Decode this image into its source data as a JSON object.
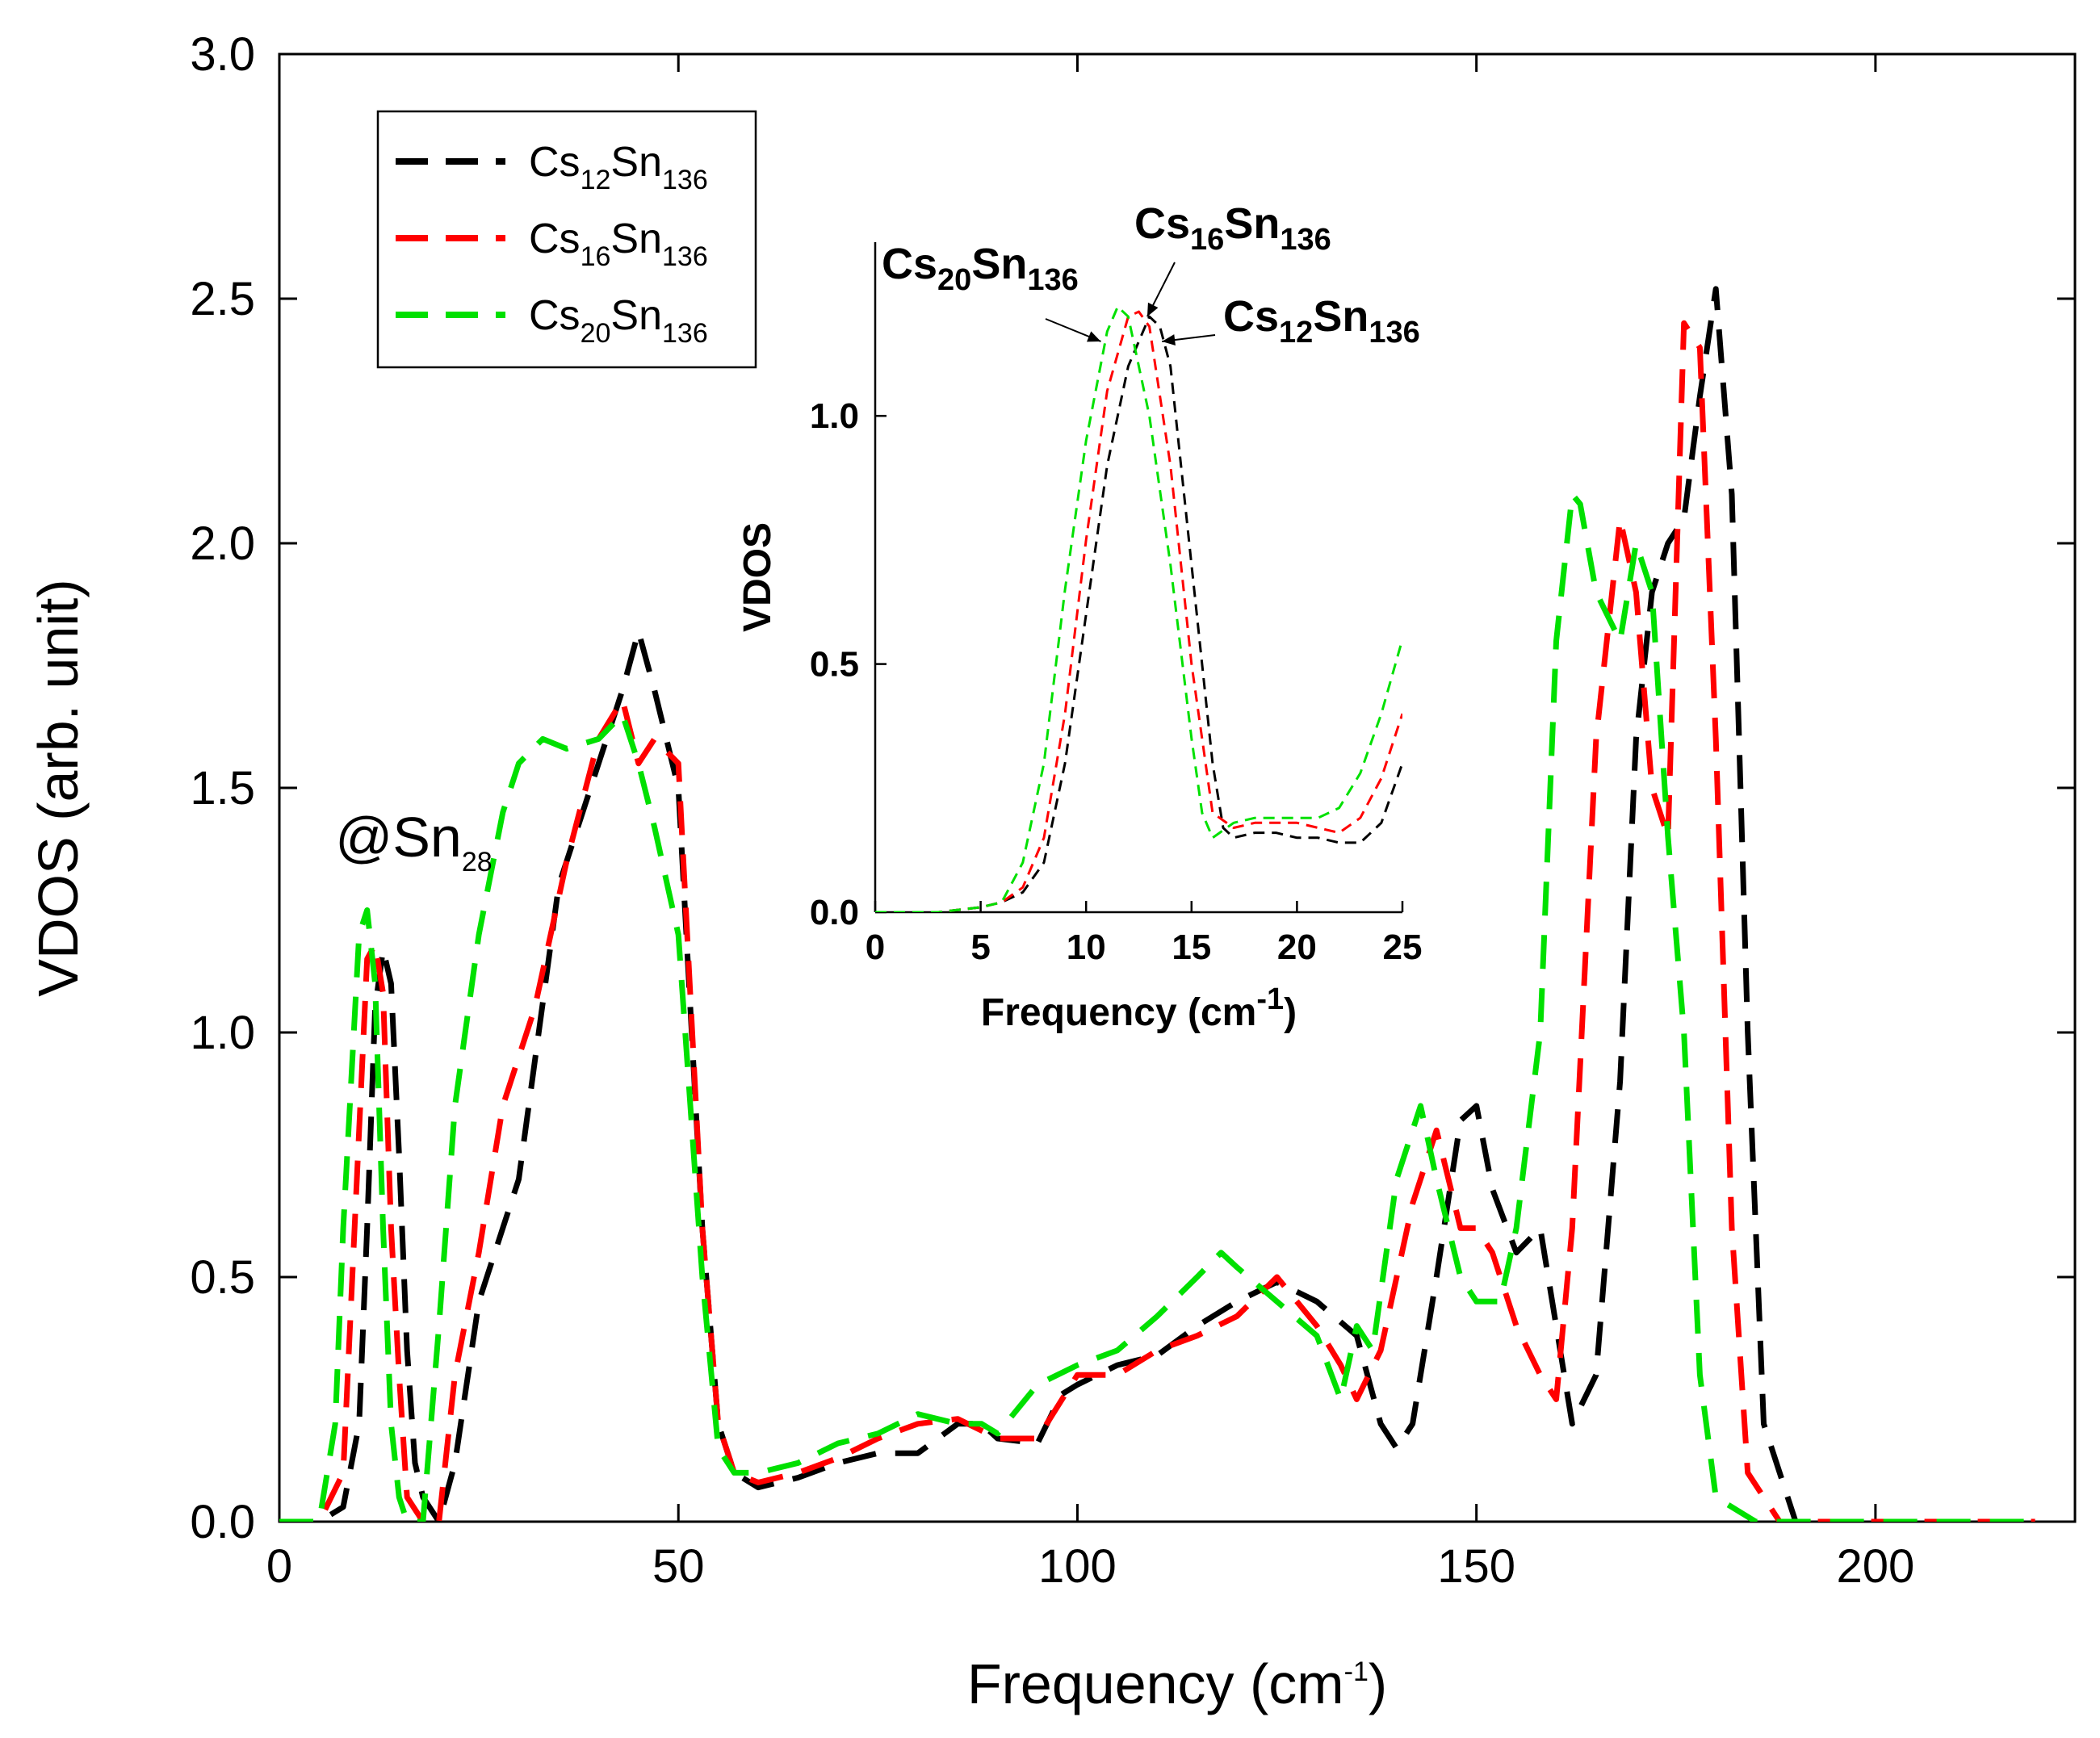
{
  "colors": {
    "black": "#000000",
    "red": "#ff0000",
    "green": "#00e000"
  },
  "chart_data": [
    {
      "type": "line",
      "name": "main",
      "xlabel": {
        "base": "Frequency (cm",
        "sup": "-1",
        "tail": ")"
      },
      "ylabel": "VDOS (arb. unit)",
      "xlim": [
        0,
        225
      ],
      "ylim": [
        0,
        3.0
      ],
      "xticks": [
        "0",
        "50",
        "100",
        "150",
        "200"
      ],
      "xtick_values": [
        0,
        50,
        100,
        150,
        200
      ],
      "yticks": [
        "0.0",
        "0.5",
        "1.0",
        "1.5",
        "2.0",
        "2.5",
        "3.0"
      ],
      "ytick_values": [
        0,
        0.5,
        1.0,
        1.5,
        2.0,
        2.5,
        3.0
      ],
      "annotation": {
        "text": "@Sn",
        "sub": "28",
        "x": 7,
        "y": 1.36
      },
      "legend_position": "top-left",
      "series": [
        {
          "name": "Cs12Sn136",
          "base": "Cs",
          "sub1": "12",
          "mid": "Sn",
          "sub2": "136",
          "color": "#000000",
          "x": [
            0,
            5,
            8,
            10,
            11,
            12,
            13,
            14,
            15,
            16,
            17,
            18,
            20,
            22,
            25,
            30,
            35,
            40,
            43,
            45,
            47,
            50,
            53,
            55,
            57,
            60,
            65,
            70,
            75,
            80,
            85,
            88,
            90,
            95,
            98,
            100,
            105,
            110,
            115,
            120,
            125,
            130,
            135,
            138,
            140,
            142,
            145,
            148,
            150,
            152,
            155,
            158,
            160,
            162,
            165,
            168,
            170,
            172,
            174,
            176,
            178,
            180,
            182,
            184,
            186,
            190,
            200,
            220
          ],
          "y": [
            0,
            0,
            0.03,
            0.2,
            0.6,
            1.05,
            1.17,
            1.1,
            0.75,
            0.35,
            0.12,
            0.05,
            0,
            0.12,
            0.45,
            0.7,
            1.3,
            1.55,
            1.7,
            1.82,
            1.7,
            1.5,
            0.6,
            0.2,
            0.1,
            0.07,
            0.09,
            0.12,
            0.14,
            0.14,
            0.2,
            0.2,
            0.17,
            0.16,
            0.26,
            0.28,
            0.32,
            0.34,
            0.4,
            0.45,
            0.49,
            0.45,
            0.38,
            0.2,
            0.15,
            0.2,
            0.5,
            0.82,
            0.85,
            0.68,
            0.55,
            0.6,
            0.4,
            0.2,
            0.3,
            0.9,
            1.6,
            1.9,
            2.0,
            2.05,
            2.3,
            2.52,
            2.1,
            1.0,
            0.2,
            0,
            0,
            0
          ]
        },
        {
          "name": "Cs16Sn136",
          "base": "Cs",
          "sub1": "16",
          "mid": "Sn",
          "sub2": "136",
          "color": "#ff0000",
          "x": [
            0,
            5,
            8,
            10,
            11,
            12,
            13,
            14,
            15,
            16,
            18,
            20,
            22,
            25,
            28,
            32,
            36,
            40,
            43,
            45,
            47,
            50,
            53,
            55,
            57,
            60,
            65,
            70,
            75,
            80,
            85,
            90,
            95,
            100,
            105,
            110,
            115,
            120,
            125,
            130,
            133,
            135,
            138,
            142,
            145,
            148,
            150,
            152,
            155,
            158,
            160,
            162,
            165,
            168,
            170,
            172,
            174,
            176,
            178,
            180,
            182,
            184,
            188,
            200,
            220
          ],
          "y": [
            0,
            0,
            0.1,
            0.8,
            1.15,
            1.18,
            1.08,
            0.6,
            0.3,
            0.05,
            0,
            0,
            0.3,
            0.55,
            0.85,
            1.05,
            1.35,
            1.6,
            1.68,
            1.55,
            1.6,
            1.55,
            0.6,
            0.2,
            0.1,
            0.08,
            0.1,
            0.13,
            0.17,
            0.2,
            0.21,
            0.17,
            0.17,
            0.3,
            0.3,
            0.35,
            0.38,
            0.42,
            0.5,
            0.4,
            0.32,
            0.25,
            0.35,
            0.65,
            0.8,
            0.6,
            0.6,
            0.55,
            0.4,
            0.3,
            0.25,
            0.6,
            1.6,
            2.05,
            1.9,
            1.5,
            1.4,
            2.45,
            2.4,
            1.6,
            0.6,
            0.1,
            0,
            0,
            0
          ]
        },
        {
          "name": "Cs20Sn136",
          "base": "Cs",
          "sub1": "20",
          "mid": "Sn",
          "sub2": "136",
          "color": "#00e000",
          "x": [
            0,
            5,
            7,
            8,
            10,
            11,
            12,
            13,
            14,
            15,
            16,
            18,
            20,
            22,
            25,
            28,
            30,
            33,
            36,
            40,
            43,
            45,
            47,
            50,
            53,
            55,
            57,
            60,
            65,
            70,
            75,
            80,
            85,
            88,
            90,
            95,
            100,
            105,
            110,
            115,
            118,
            120,
            125,
            130,
            133,
            135,
            137,
            140,
            143,
            145,
            148,
            150,
            153,
            155,
            158,
            160,
            162,
            163,
            165,
            168,
            170,
            172,
            174,
            176,
            178,
            180,
            185,
            190,
            200,
            220
          ],
          "y": [
            0,
            0,
            0.2,
            0.6,
            1.2,
            1.25,
            1.1,
            0.6,
            0.2,
            0.05,
            0,
            0,
            0.4,
            0.85,
            1.2,
            1.45,
            1.55,
            1.6,
            1.58,
            1.6,
            1.65,
            1.55,
            1.42,
            1.2,
            0.5,
            0.15,
            0.1,
            0.1,
            0.12,
            0.16,
            0.18,
            0.22,
            0.2,
            0.2,
            0.18,
            0.28,
            0.32,
            0.35,
            0.42,
            0.5,
            0.55,
            0.52,
            0.45,
            0.38,
            0.25,
            0.4,
            0.35,
            0.7,
            0.85,
            0.7,
            0.5,
            0.45,
            0.45,
            0.6,
            1.0,
            1.8,
            2.1,
            2.08,
            1.9,
            1.8,
            2.0,
            1.9,
            1.4,
            1.0,
            0.3,
            0.05,
            0,
            0,
            0,
            0
          ]
        }
      ]
    },
    {
      "type": "line",
      "name": "inset",
      "xlabel": {
        "base": "Frequency (cm",
        "sup": "-1",
        "tail": ")"
      },
      "ylabel": "VDOS",
      "xlim": [
        0,
        25
      ],
      "ylim": [
        0,
        1.35
      ],
      "xticks": [
        "0",
        "5",
        "10",
        "15",
        "20",
        "25"
      ],
      "xtick_values": [
        0,
        5,
        10,
        15,
        20,
        25
      ],
      "yticks": [
        "0.0",
        "0.5",
        "1.0"
      ],
      "ytick_values": [
        0,
        0.5,
        1.0
      ],
      "annotations": [
        {
          "base": "Cs",
          "sub1": "20",
          "mid": "Sn",
          "sub2": "136",
          "target": [
            10.7,
            1.15
          ]
        },
        {
          "base": "Cs",
          "sub1": "16",
          "mid": "Sn",
          "sub2": "136",
          "target": [
            12.9,
            1.2
          ]
        },
        {
          "base": "Cs",
          "sub1": "12",
          "mid": "Sn",
          "sub2": "136",
          "target": [
            13.6,
            1.15
          ]
        }
      ],
      "series": [
        {
          "name": "Cs12Sn136",
          "color": "#000000",
          "x": [
            0,
            3,
            5,
            6,
            7,
            8,
            9,
            10,
            11,
            12,
            13,
            13.5,
            14,
            15,
            16,
            16.5,
            17,
            18,
            19,
            20,
            21,
            22,
            23,
            24,
            25
          ],
          "y": [
            0,
            0,
            0.01,
            0.02,
            0.04,
            0.1,
            0.3,
            0.6,
            0.9,
            1.1,
            1.2,
            1.18,
            1.1,
            0.7,
            0.3,
            0.17,
            0.15,
            0.16,
            0.16,
            0.15,
            0.15,
            0.14,
            0.14,
            0.18,
            0.3
          ]
        },
        {
          "name": "Cs16Sn136",
          "color": "#ff0000",
          "x": [
            0,
            3,
            5,
            6,
            7,
            8,
            9,
            10,
            11,
            12,
            12.5,
            13,
            14,
            15,
            16,
            17,
            18,
            19,
            20,
            21,
            22,
            23,
            24,
            25
          ],
          "y": [
            0,
            0,
            0.01,
            0.02,
            0.05,
            0.15,
            0.4,
            0.75,
            1.05,
            1.2,
            1.21,
            1.18,
            0.9,
            0.5,
            0.2,
            0.17,
            0.18,
            0.18,
            0.18,
            0.17,
            0.16,
            0.19,
            0.27,
            0.4
          ]
        },
        {
          "name": "Cs20Sn136",
          "color": "#00e000",
          "x": [
            0,
            3,
            5,
            6,
            7,
            8,
            9,
            10,
            11,
            11.5,
            12,
            13,
            14,
            15,
            15.5,
            16,
            17,
            18,
            19,
            20,
            21,
            22,
            23,
            24,
            25
          ],
          "y": [
            0,
            0,
            0.01,
            0.02,
            0.1,
            0.3,
            0.65,
            0.95,
            1.17,
            1.22,
            1.2,
            1.0,
            0.7,
            0.35,
            0.2,
            0.15,
            0.18,
            0.19,
            0.19,
            0.19,
            0.19,
            0.21,
            0.28,
            0.4,
            0.55
          ]
        }
      ]
    }
  ]
}
